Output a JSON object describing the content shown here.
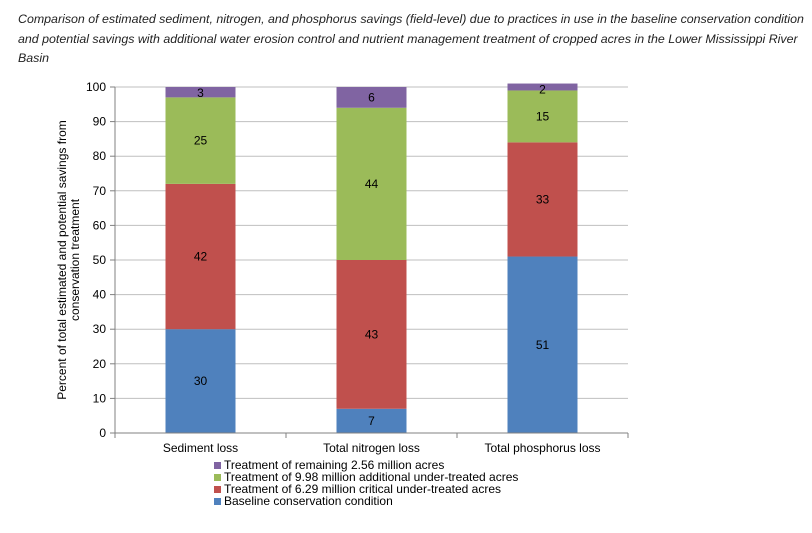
{
  "chart_data": {
    "type": "bar",
    "stacked": true,
    "title": "Comparison of estimated sediment, nitrogen, and phosphorus savings (field-level) due to practices in use in the baseline conservation condition and potential savings with additional water erosion control and nutrient management treatment of cropped acres in the Lower Mississippi River Basin",
    "ylabel_lines": [
      "Percent of total estimated and potential savings from",
      "conservation treatment"
    ],
    "xlabel": "",
    "ylim": [
      0,
      100
    ],
    "yticks": [
      0,
      10,
      20,
      30,
      40,
      50,
      60,
      70,
      80,
      90,
      100
    ],
    "grid": true,
    "legend_position": "bottom-center",
    "categories": [
      "Sediment loss",
      "Total nitrogen loss",
      "Total phosphorus loss"
    ],
    "series": [
      {
        "name": "Baseline conservation condition",
        "color": "#4F81BD",
        "values": [
          30,
          7,
          51
        ]
      },
      {
        "name": "Treatment of 6.29 million critical under-treated acres",
        "color": "#C0504D",
        "values": [
          42,
          43,
          33
        ]
      },
      {
        "name": "Treatment of 9.98 million additional under-treated acres",
        "color": "#9BBB59",
        "values": [
          25,
          44,
          15
        ]
      },
      {
        "name": "Treatment of remaining 2.56 million acres",
        "color": "#8064A2",
        "values": [
          3,
          6,
          2
        ]
      }
    ],
    "legend_order": [
      "Treatment of remaining 2.56 million acres",
      "Treatment of 9.98 million additional under-treated acres",
      "Treatment of 6.29 million critical under-treated acres",
      "Baseline conservation condition"
    ]
  }
}
